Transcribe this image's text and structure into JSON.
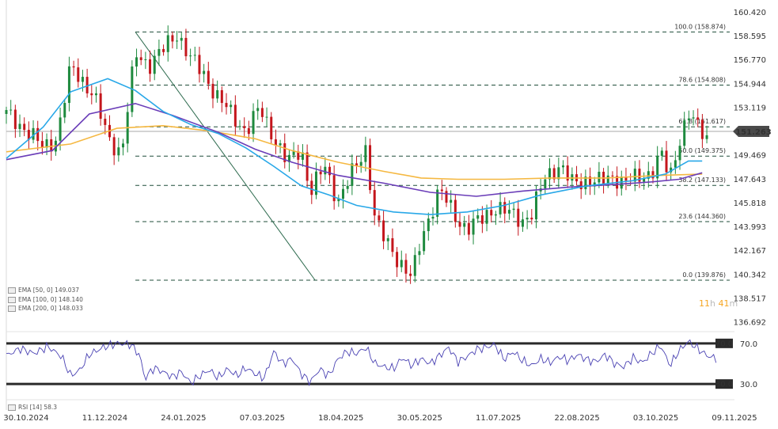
{
  "chart_data": [
    {
      "type": "candlestick",
      "price_axis": {
        "ticks": [
          "160.420",
          "158.595",
          "156.770",
          "154.944",
          "153.119",
          "151.263",
          "149.469",
          "147.643",
          "145.818",
          "143.993",
          "142.167",
          "140.342",
          "138.517",
          "136.692"
        ],
        "ylim": [
          136.0,
          161.2
        ]
      },
      "current_price": "151.263",
      "date_ticks": [
        "30.10.2024",
        "11.12.2024",
        "24.01.2025",
        "07.03.2025",
        "18.04.2025",
        "30.05.2025",
        "11.07.2025",
        "22.08.2025",
        "03.10.2025",
        "09.11.2025"
      ],
      "fibonacci": [
        {
          "label": "100.0 (158.874)",
          "value": 158.874
        },
        {
          "label": "78.6 (154.808)",
          "value": 154.808
        },
        {
          "label": "61.8 (151.617)",
          "value": 151.617
        },
        {
          "label": "50.0 (149.375)",
          "value": 149.375
        },
        {
          "label": "38.2 (147.133)",
          "value": 147.133
        },
        {
          "label": "23.6 (144.360)",
          "value": 144.36
        },
        {
          "label": "0.0 (139.876)",
          "value": 139.876
        }
      ],
      "indicators": [
        {
          "label": "EMA [50, 0]",
          "value": "149.037",
          "color": "#29a8e8"
        },
        {
          "label": "EMA [100, 0]",
          "value": "148.140",
          "color": "#6a3db8"
        },
        {
          "label": "EMA [200, 0]",
          "value": "148.033",
          "color": "#f5b841"
        }
      ],
      "price_path": [
        [
          0,
          152.6
        ],
        [
          4,
          151.5
        ],
        [
          8,
          150.0
        ],
        [
          11,
          150.8
        ],
        [
          14,
          156.2
        ],
        [
          17,
          155.0
        ],
        [
          19,
          154.0
        ],
        [
          22,
          150.8
        ],
        [
          25,
          149.6
        ],
        [
          28,
          157.2
        ],
        [
          31,
          156.4
        ],
        [
          34,
          157.5
        ],
        [
          37,
          158.8
        ],
        [
          40,
          156.8
        ],
        [
          43,
          155.6
        ],
        [
          46,
          153.8
        ],
        [
          49,
          152.5
        ],
        [
          52,
          151.3
        ],
        [
          55,
          153.0
        ],
        [
          58,
          150.9
        ],
        [
          61,
          148.8
        ],
        [
          64,
          150.0
        ],
        [
          66,
          146.6
        ],
        [
          69,
          148.6
        ],
        [
          72,
          146.0
        ],
        [
          75,
          148.0
        ],
        [
          78,
          150.0
        ],
        [
          80,
          144.5
        ],
        [
          82,
          143.0
        ],
        [
          85,
          141.5
        ],
        [
          88,
          140.0
        ],
        [
          90,
          143.0
        ],
        [
          92,
          145.0
        ],
        [
          94,
          146.8
        ],
        [
          96,
          145.6
        ],
        [
          98,
          144.5
        ],
        [
          100,
          143.8
        ],
        [
          103,
          144.5
        ],
        [
          106,
          145.5
        ],
        [
          109,
          145.0
        ],
        [
          112,
          144.5
        ],
        [
          114,
          145.0
        ],
        [
          117,
          147.8
        ],
        [
          120,
          148.7
        ],
        [
          123,
          147.2
        ],
        [
          126,
          147.6
        ],
        [
          129,
          147.4
        ],
        [
          132,
          147.8
        ],
        [
          134,
          147.5
        ],
        [
          137,
          147.6
        ],
        [
          140,
          148.2
        ],
        [
          142,
          149.6
        ],
        [
          144,
          147.6
        ],
        [
          146,
          150.6
        ],
        [
          148,
          152.7
        ],
        [
          150,
          151.5
        ],
        [
          152,
          150.8
        ]
      ],
      "ema50_path": [
        [
          0,
          149.2
        ],
        [
          8,
          151.6
        ],
        [
          14,
          154.3
        ],
        [
          22,
          155.3
        ],
        [
          28,
          154.4
        ],
        [
          34,
          152.8
        ],
        [
          40,
          151.8
        ],
        [
          46,
          151.1
        ],
        [
          52,
          150.0
        ],
        [
          58,
          148.6
        ],
        [
          64,
          147.1
        ],
        [
          70,
          146.4
        ],
        [
          76,
          145.6
        ],
        [
          84,
          145.1
        ],
        [
          92,
          144.9
        ],
        [
          100,
          145.1
        ],
        [
          108,
          145.6
        ],
        [
          116,
          146.4
        ],
        [
          126,
          147.1
        ],
        [
          136,
          147.5
        ],
        [
          143,
          148.0
        ],
        [
          148,
          149.0
        ],
        [
          151,
          149.0
        ]
      ],
      "ema100_path": [
        [
          0,
          149.1
        ],
        [
          10,
          149.8
        ],
        [
          18,
          152.6
        ],
        [
          28,
          153.4
        ],
        [
          36,
          152.5
        ],
        [
          46,
          151.2
        ],
        [
          54,
          149.9
        ],
        [
          62,
          148.9
        ],
        [
          72,
          147.9
        ],
        [
          82,
          147.3
        ],
        [
          92,
          146.6
        ],
        [
          102,
          146.3
        ],
        [
          112,
          146.7
        ],
        [
          122,
          147.0
        ],
        [
          132,
          147.2
        ],
        [
          140,
          147.4
        ],
        [
          146,
          147.6
        ],
        [
          151,
          148.1
        ]
      ],
      "ema200_path": [
        [
          0,
          149.7
        ],
        [
          14,
          150.3
        ],
        [
          24,
          151.5
        ],
        [
          34,
          151.7
        ],
        [
          44,
          151.3
        ],
        [
          54,
          150.7
        ],
        [
          62,
          149.8
        ],
        [
          72,
          148.9
        ],
        [
          82,
          148.2
        ],
        [
          90,
          147.7
        ],
        [
          98,
          147.6
        ],
        [
          108,
          147.6
        ],
        [
          118,
          147.7
        ],
        [
          130,
          147.7
        ],
        [
          142,
          147.9
        ],
        [
          151,
          148.0
        ]
      ],
      "trendline": {
        "from": [
          28,
          158.874
        ],
        "to": [
          67,
          139.876
        ]
      }
    },
    {
      "type": "line",
      "indicator": "RSI [14]",
      "value": "58.3",
      "levels": [
        "70.0",
        "30.0"
      ],
      "ylim": [
        20,
        80
      ],
      "color": "#4a42b3",
      "path": [
        [
          0,
          58
        ],
        [
          3,
          65
        ],
        [
          6,
          60
        ],
        [
          9,
          67
        ],
        [
          12,
          57
        ],
        [
          14,
          38
        ],
        [
          16,
          44
        ],
        [
          18,
          59
        ],
        [
          21,
          66
        ],
        [
          24,
          70
        ],
        [
          27,
          69
        ],
        [
          29,
          58
        ],
        [
          30,
          35
        ],
        [
          32,
          46
        ],
        [
          34,
          42
        ],
        [
          36,
          37
        ],
        [
          38,
          42
        ],
        [
          40,
          31
        ],
        [
          42,
          38
        ],
        [
          44,
          44
        ],
        [
          46,
          36
        ],
        [
          48,
          45
        ],
        [
          50,
          38
        ],
        [
          52,
          46
        ],
        [
          54,
          40
        ],
        [
          56,
          36
        ],
        [
          58,
          62
        ],
        [
          60,
          50
        ],
        [
          62,
          55
        ],
        [
          64,
          40
        ],
        [
          66,
          32
        ],
        [
          68,
          45
        ],
        [
          70,
          38
        ],
        [
          72,
          55
        ],
        [
          74,
          62
        ],
        [
          76,
          60
        ],
        [
          78,
          66
        ],
        [
          80,
          50
        ],
        [
          82,
          47
        ],
        [
          84,
          45
        ],
        [
          86,
          56
        ],
        [
          88,
          48
        ],
        [
          90,
          55
        ],
        [
          92,
          50
        ],
        [
          94,
          58
        ],
        [
          96,
          66
        ],
        [
          98,
          52
        ],
        [
          100,
          57
        ],
        [
          102,
          64
        ],
        [
          104,
          66
        ],
        [
          106,
          69
        ],
        [
          108,
          54
        ],
        [
          110,
          62
        ],
        [
          112,
          53
        ],
        [
          114,
          48
        ],
        [
          116,
          55
        ],
        [
          118,
          51
        ],
        [
          120,
          57
        ],
        [
          122,
          53
        ],
        [
          124,
          59
        ],
        [
          126,
          54
        ],
        [
          128,
          52
        ],
        [
          130,
          59
        ],
        [
          132,
          50
        ],
        [
          134,
          47
        ],
        [
          136,
          56
        ],
        [
          138,
          51
        ],
        [
          140,
          60
        ],
        [
          142,
          68
        ],
        [
          144,
          48
        ],
        [
          146,
          63
        ],
        [
          148,
          72
        ],
        [
          150,
          65
        ],
        [
          152,
          58
        ],
        [
          154,
          55
        ]
      ]
    }
  ],
  "legend": {
    "rsi_label": "RSI [14]",
    "rsi_value": "58.3"
  },
  "timer": {
    "hours": "11",
    "h_unit": "h",
    "minutes": "41",
    "m_unit": "m"
  }
}
